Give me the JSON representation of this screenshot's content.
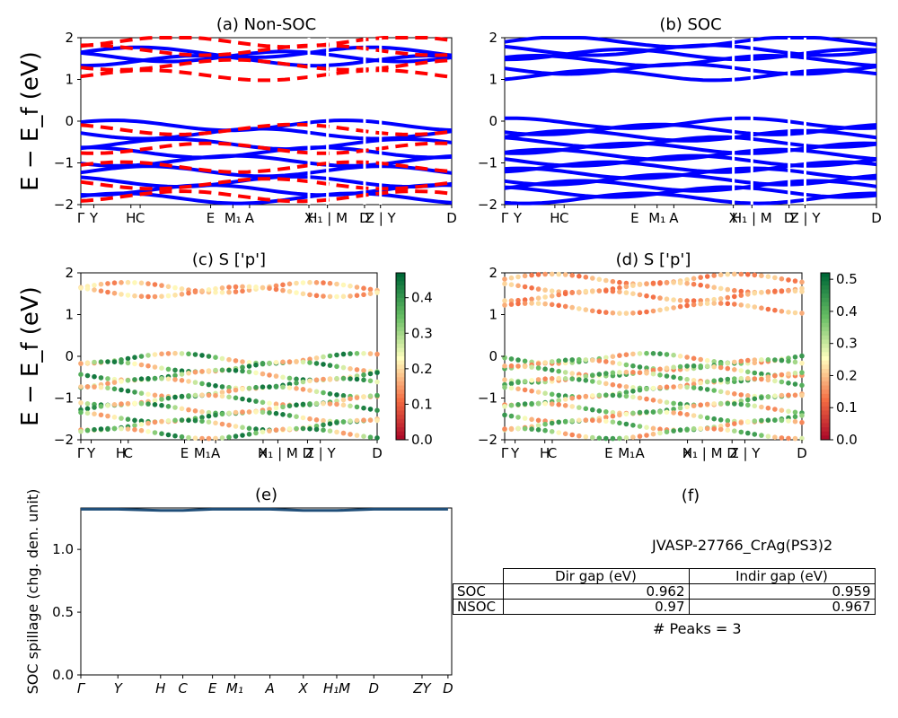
{
  "chart_data": [
    {
      "id": "a",
      "type": "line",
      "title": "(a) Non-SOC",
      "ylabel": "E − E_f (eV)",
      "ylim": [
        -2,
        2
      ],
      "yticks": [
        "2",
        "1",
        "0",
        "−1",
        "−2"
      ],
      "xticks": [
        "Γ",
        "Y",
        "H",
        "C",
        "E",
        "M₁",
        "A",
        "X",
        "H₁ | M",
        "D",
        "Z | Y",
        "D"
      ],
      "series": [
        {
          "spin": "up",
          "color": "#0000ff",
          "style": "solid",
          "bands_eV": [
            1.65,
            1.55,
            1.45,
            -0.1,
            -0.3,
            -0.55,
            -0.75,
            -0.95,
            -1.2,
            -1.45,
            -1.65,
            -1.85
          ]
        },
        {
          "spin": "down",
          "color": "#ff0000",
          "style": "dashed",
          "bands_eV": [
            1.9,
            1.7,
            1.35,
            1.1,
            -0.2,
            -0.65,
            -1.1,
            -1.5,
            -1.8
          ]
        }
      ]
    },
    {
      "id": "b",
      "type": "line",
      "title": "(b) SOC",
      "ylim": [
        -2,
        2
      ],
      "yticks": [
        "2",
        "1",
        "0",
        "−1",
        "−2"
      ],
      "xticks": [
        "Γ",
        "Y",
        "H",
        "C",
        "E",
        "M₁",
        "A",
        "X",
        "H₁ | M",
        "D",
        "Z | Y",
        "D"
      ],
      "series": [
        {
          "color": "#0000ff",
          "style": "solid",
          "bands_eV": [
            1.9,
            1.7,
            1.6,
            1.45,
            1.25,
            1.1,
            -0.05,
            -0.2,
            -0.35,
            -0.5,
            -0.65,
            -0.8,
            -0.95,
            -1.1,
            -1.25,
            -1.4,
            -1.55,
            -1.7,
            -1.85
          ]
        }
      ]
    },
    {
      "id": "c",
      "type": "scatter",
      "title": "(c)  S ['p']",
      "ylabel": "E − E_f (eV)",
      "ylim": [
        -2,
        2
      ],
      "yticks": [
        "2",
        "1",
        "0",
        "−1",
        "−2"
      ],
      "xticks": [
        "Γ",
        "Y",
        "H",
        "C",
        "E",
        "M₁",
        "A",
        "X",
        "H₁ | M",
        "D",
        "Z | Y",
        "D"
      ],
      "colorbar": {
        "min": 0.0,
        "max": 0.47,
        "ticks": [
          "0.0",
          "0.1",
          "0.2",
          "0.3",
          "0.4"
        ],
        "cmap": "RdYlGn"
      },
      "bands_eV": [
        1.65,
        1.55,
        -0.05,
        -0.25,
        -0.45,
        -0.65,
        -0.85,
        -1.05,
        -1.25,
        -1.45,
        -1.65,
        -1.85
      ]
    },
    {
      "id": "d",
      "type": "scatter",
      "title": "(d) S ['p']",
      "ylim": [
        -2,
        2
      ],
      "yticks": [
        "2",
        "1",
        "0",
        "−1",
        "−2"
      ],
      "xticks": [
        "Γ",
        "Y",
        "H",
        "C",
        "E",
        "M₁",
        "A",
        "X",
        "H₁ | M",
        "D",
        "Z | Y",
        "D"
      ],
      "colorbar": {
        "min": 0.0,
        "max": 0.52,
        "ticks": [
          "0.0",
          "0.1",
          "0.2",
          "0.3",
          "0.4",
          "0.5"
        ],
        "cmap": "RdYlGn"
      },
      "bands_eV": [
        1.85,
        1.65,
        1.45,
        1.15,
        -0.05,
        -0.2,
        -0.35,
        -0.5,
        -0.65,
        -0.85,
        -1.05,
        -1.25,
        -1.45,
        -1.65,
        -1.85
      ]
    },
    {
      "id": "e",
      "type": "line",
      "title": "(e)",
      "ylabel": "SOC spillage (chg. den. unit)",
      "ylim": [
        0,
        1.33
      ],
      "yticks": [
        "0.0",
        "0.5",
        "1.0"
      ],
      "xticks": [
        "Γ",
        "Y",
        "H",
        "C",
        "E",
        "M₁",
        "A",
        "X",
        "H₁M",
        "D",
        "ZY",
        "D"
      ],
      "series": [
        {
          "color": "#1f4e79",
          "y": [
            1.32,
            1.32,
            1.31,
            1.31,
            1.32,
            1.32,
            1.32,
            1.31,
            1.31,
            1.32,
            1.32,
            1.32
          ]
        }
      ]
    },
    {
      "id": "f",
      "type": "table",
      "title": "(f)",
      "subtitle": "JVASP-27766_CrAg(PS3)2",
      "columns": [
        "Dir gap (eV)",
        "Indir gap (eV)"
      ],
      "rows": [
        {
          "label": "SOC",
          "values": [
            "0.962",
            "0.959"
          ]
        },
        {
          "label": "NSOC",
          "values": [
            "0.97",
            "0.967"
          ]
        }
      ],
      "note": "# Peaks = 3"
    }
  ]
}
